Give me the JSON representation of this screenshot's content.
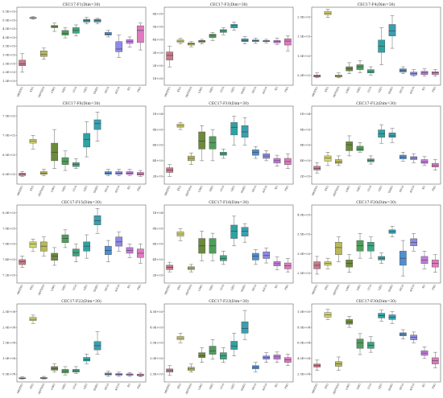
{
  "figure": {
    "algorithms": [
      "MHSTO",
      "STO",
      "AEFSHA",
      "GWO",
      "DBO",
      "COA",
      "GEO",
      "SABO",
      "WOA",
      "AVOA",
      "SO",
      "PSO"
    ],
    "colors": [
      "#c97a8a",
      "#d4d46a",
      "#b8b85a",
      "#6b8b3a",
      "#4f9f5a",
      "#3fa680",
      "#2ea3a3",
      "#3a9fb0",
      "#4f8fd0",
      "#8e8ae6",
      "#c47ae0",
      "#e07ac0"
    ]
  },
  "chart_data": [
    {
      "type": "box",
      "title": "CEC17-F1(Dim=30)",
      "yticks": [
        "1.5E+03",
        "2.0E+03",
        "2.5E+03",
        "3.0E+03",
        "3.5E+03",
        "4.0E+03",
        "4.5E+03",
        "5.0E+03",
        "5.5E+03"
      ],
      "ylim": [
        1.5,
        5.7
      ],
      "boxes": [
        [
          2.2,
          2.55,
          2.65,
          2.85,
          3.2
        ],
        [
          5.05,
          5.1,
          5.12,
          5.15,
          5.2
        ],
        [
          2.9,
          3.05,
          3.15,
          3.35,
          3.5
        ],
        [
          4.4,
          4.6,
          4.65,
          4.72,
          4.85
        ],
        [
          4.05,
          4.2,
          4.3,
          4.45,
          4.6
        ],
        [
          4.15,
          4.3,
          4.45,
          4.6,
          4.75
        ],
        [
          4.8,
          4.9,
          4.98,
          5.05,
          5.15
        ],
        [
          4.8,
          4.9,
          5.0,
          5.05,
          5.1
        ],
        [
          4.1,
          4.2,
          4.25,
          4.35,
          4.45
        ],
        [
          3.0,
          3.3,
          3.45,
          3.85,
          4.2
        ],
        [
          3.55,
          3.75,
          3.85,
          3.95,
          4.1
        ],
        [
          3.4,
          3.8,
          4.45,
          4.7,
          4.85
        ]
      ]
    },
    {
      "type": "box",
      "title": "CEC17-F3(Dim=30)",
      "yticks": [
        "1E+05",
        "2E+05",
        "3E+05",
        "4E+05",
        "5E+05",
        "6E+05"
      ],
      "ylim": [
        0,
        6.8
      ],
      "boxes": [
        [
          1.6,
          2.2,
          2.6,
          2.9,
          3.4
        ],
        [
          3.6,
          3.75,
          3.85,
          3.95,
          4.1
        ],
        [
          3.35,
          3.5,
          3.6,
          3.7,
          3.8
        ],
        [
          3.6,
          3.75,
          3.85,
          3.9,
          4.0
        ],
        [
          3.9,
          4.15,
          4.35,
          4.45,
          4.6
        ],
        [
          4.4,
          4.6,
          4.75,
          4.85,
          5.0
        ],
        [
          4.8,
          5.0,
          5.2,
          5.3,
          5.5
        ],
        [
          3.6,
          3.8,
          3.9,
          4.05,
          4.25
        ],
        [
          3.65,
          3.8,
          3.9,
          3.95,
          4.1
        ],
        [
          3.7,
          3.8,
          3.85,
          3.9,
          4.0
        ],
        [
          3.55,
          3.7,
          3.8,
          3.9,
          4.1
        ],
        [
          3.0,
          3.5,
          3.85,
          4.05,
          4.3
        ]
      ]
    },
    {
      "type": "box",
      "title": "CEC17-F4(Dim=30)",
      "yticks": [
        "5.0E+02",
        "1.0E+03",
        "1.5E+03",
        "2.0E+03"
      ],
      "ylim": [
        0.3,
        2.2
      ],
      "boxes": [
        [
          0.48,
          0.5,
          0.52,
          0.55,
          0.6
        ],
        [
          1.95,
          2.02,
          2.05,
          2.1,
          2.15
        ],
        [
          0.48,
          0.5,
          0.52,
          0.55,
          0.6
        ],
        [
          0.58,
          0.65,
          0.7,
          0.75,
          0.85
        ],
        [
          0.6,
          0.68,
          0.75,
          0.8,
          0.9
        ],
        [
          0.55,
          0.6,
          0.63,
          0.68,
          0.75
        ],
        [
          0.8,
          1.1,
          1.25,
          1.4,
          1.7
        ],
        [
          1.2,
          1.5,
          1.62,
          1.78,
          2.0
        ],
        [
          0.58,
          0.62,
          0.66,
          0.7,
          0.75
        ],
        [
          0.52,
          0.55,
          0.58,
          0.62,
          0.68
        ],
        [
          0.52,
          0.56,
          0.6,
          0.64,
          0.7
        ],
        [
          0.52,
          0.56,
          0.6,
          0.63,
          0.68
        ]
      ]
    },
    {
      "type": "box",
      "title": "CEC17-F6(Dim=30)",
      "yticks": [
        "6.0E+02",
        "6.5E+02",
        "7.0E+02",
        "7.5E+02"
      ],
      "ylim": [
        5.9,
        7.9
      ],
      "boxes": [
        [
          6.1,
          6.12,
          6.15,
          6.18,
          6.22
        ],
        [
          6.8,
          6.95,
          7.0,
          7.05,
          7.15
        ],
        [
          6.12,
          6.15,
          6.18,
          6.22,
          6.28
        ],
        [
          6.3,
          6.5,
          6.72,
          6.95,
          7.3
        ],
        [
          6.25,
          6.4,
          6.48,
          6.58,
          6.75
        ],
        [
          6.3,
          6.35,
          6.4,
          6.45,
          6.55
        ],
        [
          6.6,
          6.85,
          7.05,
          7.2,
          7.5
        ],
        [
          7.0,
          7.3,
          7.45,
          7.55,
          7.75
        ],
        [
          6.12,
          6.15,
          6.18,
          6.22,
          6.28
        ],
        [
          6.12,
          6.15,
          6.18,
          6.22,
          6.28
        ],
        [
          6.12,
          6.15,
          6.18,
          6.22,
          6.28
        ],
        [
          6.1,
          6.13,
          6.16,
          6.2,
          6.25
        ]
      ]
    },
    {
      "type": "box",
      "title": "CEC17-F10(Dim=30)",
      "yticks": [
        "2E+03",
        "4E+03",
        "6E+03",
        "8E+03",
        "1E+04"
      ],
      "ylim": [
        0.5,
        10.5
      ],
      "boxes": [
        [
          1.5,
          2.0,
          2.3,
          2.6,
          3.0
        ],
        [
          7.5,
          7.8,
          8.0,
          8.2,
          8.4
        ],
        [
          3.0,
          3.5,
          3.8,
          4.1,
          4.5
        ],
        [
          3.5,
          5.0,
          6.0,
          7.2,
          8.0
        ],
        [
          3.5,
          5.0,
          5.8,
          6.6,
          7.5
        ],
        [
          3.8,
          4.2,
          4.4,
          4.6,
          5.0
        ],
        [
          5.5,
          6.8,
          7.8,
          8.4,
          9.2
        ],
        [
          5.5,
          6.5,
          7.2,
          8.0,
          9.0
        ],
        [
          3.8,
          4.2,
          4.6,
          4.9,
          5.3
        ],
        [
          3.5,
          3.8,
          4.1,
          4.4,
          4.8
        ],
        [
          2.8,
          3.2,
          3.5,
          3.8,
          4.2
        ],
        [
          2.5,
          3.0,
          3.4,
          3.8,
          4.4
        ]
      ]
    },
    {
      "type": "box",
      "title": "CEC17-F12(Dim=30)",
      "yticks": [
        "2E+03",
        "4E+03",
        "6E+03",
        "8E+03",
        "1E+04"
      ],
      "ylim": [
        0.5,
        11
      ],
      "boxes": [
        [
          2.0,
          2.4,
          2.6,
          2.9,
          3.4
        ],
        [
          3.0,
          3.6,
          4.0,
          4.3,
          4.8
        ],
        [
          3.0,
          3.3,
          3.5,
          3.8,
          4.3
        ],
        [
          4.3,
          5.0,
          5.8,
          6.2,
          7.0
        ],
        [
          4.8,
          5.0,
          5.2,
          5.6,
          6.1
        ],
        [
          3.2,
          3.5,
          3.7,
          3.9,
          4.3
        ],
        [
          6.0,
          6.8,
          7.3,
          7.8,
          8.5
        ],
        [
          6.1,
          6.8,
          7.0,
          7.4,
          8.0
        ],
        [
          3.6,
          3.9,
          4.1,
          4.4,
          4.8
        ],
        [
          3.4,
          3.8,
          4.0,
          4.2,
          4.6
        ],
        [
          3.0,
          3.3,
          3.5,
          3.8,
          4.2
        ],
        [
          2.4,
          2.8,
          3.0,
          3.3,
          3.8
        ]
      ]
    },
    {
      "type": "box",
      "title": "CEC17-F15(Dim=30)",
      "yticks": [
        "7.2E+03",
        "7.4E+03",
        "7.6E+03",
        "7.8E+03",
        "8.0E+03"
      ],
      "ylim": [
        7.0,
        8.1
      ],
      "boxes": [
        [
          7.22,
          7.26,
          7.3,
          7.33,
          7.38
        ],
        [
          7.45,
          7.5,
          7.55,
          7.58,
          7.62
        ],
        [
          7.38,
          7.45,
          7.52,
          7.58,
          7.65
        ],
        [
          7.25,
          7.32,
          7.38,
          7.42,
          7.5
        ],
        [
          7.5,
          7.57,
          7.63,
          7.68,
          7.75
        ],
        [
          7.3,
          7.38,
          7.43,
          7.48,
          7.55
        ],
        [
          7.35,
          7.45,
          7.52,
          7.58,
          7.68
        ],
        [
          7.7,
          7.82,
          7.88,
          7.95,
          8.05
        ],
        [
          7.3,
          7.4,
          7.46,
          7.52,
          7.6
        ],
        [
          7.45,
          7.52,
          7.58,
          7.65,
          7.72
        ],
        [
          7.36,
          7.42,
          7.46,
          7.5,
          7.55
        ],
        [
          7.28,
          7.36,
          7.42,
          7.48,
          7.55
        ]
      ]
    },
    {
      "type": "box",
      "title": "CEC17-F16(Dim=30)",
      "yticks": [
        "2E+03",
        "4E+03",
        "6E+03",
        "8E+03",
        "1E+04"
      ],
      "ylim": [
        0.5,
        11
      ],
      "boxes": [
        [
          2.0,
          2.3,
          2.6,
          2.9,
          3.3
        ],
        [
          6.2,
          6.8,
          7.1,
          7.4,
          7.8
        ],
        [
          2.0,
          2.3,
          2.5,
          2.7,
          3.0
        ],
        [
          3.5,
          4.5,
          5.5,
          6.5,
          7.5
        ],
        [
          3.5,
          4.5,
          5.5,
          6.5,
          7.2
        ],
        [
          3.0,
          3.5,
          3.8,
          4.2,
          4.8
        ],
        [
          5.5,
          6.5,
          7.5,
          8.3,
          9.5
        ],
        [
          6.0,
          6.8,
          7.5,
          8.0,
          8.5
        ],
        [
          3.0,
          3.6,
          4.1,
          4.5,
          5.0
        ],
        [
          3.2,
          3.8,
          4.2,
          4.7,
          5.2
        ],
        [
          2.3,
          2.8,
          3.1,
          3.4,
          4.0
        ],
        [
          2.0,
          2.4,
          2.8,
          3.2,
          3.8
        ]
      ]
    },
    {
      "type": "box",
      "title": "CEC17-F20(Dim=30)",
      "yticks": [
        "2.5E+03",
        "3.0E+03",
        "3.5E+03",
        "4.0E+03"
      ],
      "ylim": [
        2.3,
        4.5
      ],
      "boxes": [
        [
          2.55,
          2.7,
          2.8,
          2.9,
          3.05
        ],
        [
          2.7,
          2.8,
          2.85,
          2.9,
          3.0
        ],
        [
          2.9,
          3.1,
          3.3,
          3.45,
          3.6
        ],
        [
          2.6,
          2.75,
          2.85,
          2.95,
          3.1
        ],
        [
          3.0,
          3.2,
          3.35,
          3.5,
          3.7
        ],
        [
          3.0,
          3.2,
          3.35,
          3.45,
          3.6
        ],
        [
          2.85,
          2.95,
          3.0,
          3.05,
          3.15
        ],
        [
          3.6,
          3.7,
          3.75,
          3.8,
          3.9
        ],
        [
          2.5,
          2.8,
          3.0,
          3.2,
          3.5
        ],
        [
          3.2,
          3.35,
          3.45,
          3.55,
          3.7
        ],
        [
          2.7,
          2.85,
          2.95,
          3.05,
          3.2
        ],
        [
          2.6,
          2.75,
          2.85,
          2.95,
          3.1
        ]
      ]
    },
    {
      "type": "box",
      "title": "CEC17-F22(Dim=30)",
      "yticks": [
        "0.5E+08",
        "1.0E+08",
        "1.5E+08",
        "2.0E+08",
        "2.5E+08"
      ],
      "ylim": [
        0.1,
        2.9
      ],
      "boxes": [
        [
          0.2,
          0.22,
          0.23,
          0.25,
          0.28
        ],
        [
          2.2,
          2.3,
          2.35,
          2.42,
          2.5
        ],
        [
          0.2,
          0.22,
          0.24,
          0.26,
          0.3
        ],
        [
          0.45,
          0.52,
          0.58,
          0.65,
          0.75
        ],
        [
          0.35,
          0.42,
          0.48,
          0.55,
          0.65
        ],
        [
          0.4,
          0.45,
          0.5,
          0.55,
          0.65
        ],
        [
          0.75,
          0.85,
          0.9,
          0.98,
          1.1
        ],
        [
          1.1,
          1.25,
          1.4,
          1.55,
          1.9
        ],
        [
          0.3,
          0.35,
          0.38,
          0.42,
          0.48
        ],
        [
          0.3,
          0.34,
          0.37,
          0.4,
          0.45
        ],
        [
          0.3,
          0.34,
          0.36,
          0.39,
          0.44
        ],
        [
          0.28,
          0.32,
          0.35,
          0.38,
          0.42
        ]
      ]
    },
    {
      "type": "box",
      "title": "CEC17-F23(Dim=30)",
      "yticks": [
        "2.5E+03",
        "3.0E+03",
        "3.5E+03",
        "4.0E+03",
        "4.5E+03"
      ],
      "ylim": [
        2.2,
        4.6
      ],
      "boxes": [
        [
          2.4,
          2.5,
          2.55,
          2.6,
          2.7
        ],
        [
          3.4,
          3.5,
          3.55,
          3.6,
          3.7
        ],
        [
          2.5,
          2.55,
          2.6,
          2.65,
          2.75
        ],
        [
          2.8,
          2.95,
          3.0,
          3.1,
          3.25
        ],
        [
          2.9,
          3.05,
          3.15,
          3.3,
          3.5
        ],
        [
          2.8,
          2.9,
          3.0,
          3.1,
          3.25
        ],
        [
          3.0,
          3.2,
          3.3,
          3.45,
          3.7
        ],
        [
          3.5,
          3.7,
          3.85,
          4.05,
          4.4
        ],
        [
          2.5,
          2.6,
          2.65,
          2.7,
          2.8
        ],
        [
          2.8,
          2.9,
          2.95,
          3.0,
          3.1
        ],
        [
          2.8,
          2.9,
          2.97,
          3.03,
          3.12
        ],
        [
          2.7,
          2.8,
          2.88,
          2.95,
          3.05
        ]
      ]
    },
    {
      "type": "box",
      "title": "CEC17-F30(Dim=30)",
      "yticks": [
        "2.0E+04",
        "4.0E+04",
        "6.0E+04",
        "8.0E+04",
        "1.0E+05"
      ],
      "ylim": [
        1.0,
        11
      ],
      "boxes": [
        [
          2.5,
          2.9,
          3.1,
          3.3,
          3.8
        ],
        [
          9.0,
          9.3,
          9.6,
          9.9,
          10.3
        ],
        [
          2.5,
          3.0,
          3.3,
          3.6,
          4.2
        ],
        [
          8.0,
          8.4,
          8.7,
          9.0,
          9.4
        ],
        [
          4.5,
          5.3,
          6.0,
          6.5,
          7.2
        ],
        [
          4.8,
          5.3,
          5.7,
          6.1,
          6.8
        ],
        [
          8.8,
          9.2,
          9.5,
          9.8,
          10.2
        ],
        [
          8.5,
          9.0,
          9.3,
          9.6,
          10.0
        ],
        [
          6.5,
          6.9,
          7.1,
          7.3,
          7.7
        ],
        [
          6.0,
          6.4,
          6.7,
          7.0,
          7.4
        ],
        [
          4.0,
          4.4,
          4.7,
          5.0,
          5.5
        ],
        [
          2.8,
          3.3,
          3.7,
          4.1,
          4.8
        ]
      ]
    }
  ]
}
